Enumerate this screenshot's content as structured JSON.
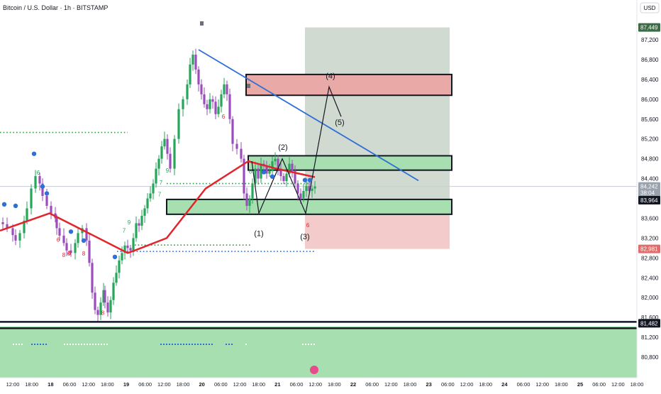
{
  "header": {
    "symbol_title": "Bitcoin / U.S. Dollar · 1h · BITSTAMP"
  },
  "price_axis": {
    "currency_button": "USD",
    "ticks": [
      "87,200",
      "86,800",
      "86,400",
      "86,000",
      "85,600",
      "85,200",
      "84,800",
      "84,400",
      "84,000",
      "83,600",
      "83,200",
      "82,800",
      "82,400",
      "82,000",
      "81,600",
      "81,200",
      "80,800"
    ]
  },
  "time_axis": {
    "labels": [
      "12:00",
      "18:00",
      "18",
      "06:00",
      "12:00",
      "18:00",
      "19",
      "06:00",
      "12:00",
      "18:00",
      "20",
      "06:00",
      "12:00",
      "18:00",
      "21",
      "06:00",
      "12:00",
      "18:00",
      "22",
      "06:00",
      "12:00",
      "18:00",
      "23",
      "06:00",
      "12:00",
      "18:00",
      "24",
      "06:00",
      "12:00",
      "18:00",
      "25",
      "06:00",
      "12:00",
      "18:00"
    ]
  },
  "badges": [
    {
      "label": "87,449",
      "value": 87449,
      "color": "#3d6b45"
    },
    {
      "label": "84,242",
      "sub": "38:04",
      "value": 84242,
      "color": "#9aa3ad"
    },
    {
      "label": "83,964",
      "value": 83964,
      "color": "#131722"
    },
    {
      "label": "82,981",
      "value": 82981,
      "color": "#e06c6c"
    },
    {
      "label": "81,482",
      "value": 81482,
      "color": "#131722"
    }
  ],
  "wave_labels": [
    "(1)",
    "(2)",
    "(3)",
    "(4)",
    "(5)"
  ],
  "markers": {
    "digit_labels": [
      "6",
      "6",
      "6",
      "6",
      "6",
      "6",
      "7",
      "7",
      "7",
      "8",
      "8",
      "8",
      "8",
      "9",
      "9"
    ]
  },
  "colors": {
    "bull": "#26a65b",
    "bear": "#9b4dbb",
    "ma": "#e3242b",
    "trend": "#2f6fd6",
    "dots_green": "#2e9e44",
    "dots_blue": "#2f6fd6",
    "zone_green": "#a8dfb0",
    "zone_red": "#e9a9a6",
    "target_grey": "#c9d3c9",
    "stop_red": "#f1c2c2"
  },
  "chart_data": {
    "type": "candlestick",
    "title": "Bitcoin / U.S. Dollar · 1h · BITSTAMP",
    "ylim": [
      80600,
      87700
    ],
    "y_ticks": [
      87200,
      86800,
      86400,
      86000,
      85600,
      85200,
      84800,
      84400,
      84000,
      83600,
      83200,
      82800,
      82400,
      82000,
      81600,
      81200,
      80800
    ],
    "close_path_x": [
      "0",
      "4",
      "10",
      "18",
      "22",
      "28",
      "34",
      "38",
      "44",
      "50",
      "56",
      "60",
      "66",
      "72",
      "78",
      "80",
      "84",
      "90",
      "94",
      "100",
      "106",
      "110",
      "116",
      "122",
      "126",
      "130",
      "134",
      "138",
      "142",
      "146",
      "148",
      "152",
      "156",
      "160",
      "164",
      "168",
      "172",
      "176",
      "180",
      "184",
      "188",
      "192",
      "196",
      "200",
      "204",
      "208",
      "212",
      "216",
      "220",
      "224",
      "228",
      "232",
      "236",
      "240",
      "246",
      "252",
      "258",
      "264",
      "268",
      "272",
      "276",
      "280",
      "284",
      "288",
      "292",
      "296",
      "300",
      "304",
      "308",
      "312",
      "316",
      "320",
      "324",
      "328",
      "334",
      "340",
      "344",
      "348",
      "352",
      "356",
      "360",
      "364",
      "368",
      "372",
      "376",
      "380",
      "384",
      "388",
      "392",
      "396",
      "400",
      "404",
      "408",
      "412",
      "416",
      "420",
      "424",
      "428",
      "432",
      "436",
      "440",
      "444"
    ],
    "close_path_y": [
      83520,
      83480,
      83400,
      83260,
      83150,
      83300,
      83550,
      83800,
      84200,
      84450,
      84300,
      84050,
      83850,
      83700,
      83600,
      83400,
      83250,
      83100,
      82950,
      82900,
      83100,
      83300,
      83400,
      83150,
      82700,
      82100,
      81750,
      81650,
      81900,
      82150,
      81900,
      81700,
      81950,
      82300,
      82500,
      82750,
      82900,
      83050,
      83000,
      82950,
      83200,
      83500,
      83450,
      83650,
      83800,
      84000,
      84100,
      84300,
      84600,
      84800,
      85050,
      85200,
      84900,
      84600,
      85200,
      85800,
      86000,
      86300,
      86700,
      86900,
      86600,
      86300,
      86100,
      85900,
      85800,
      86000,
      85950,
      85700,
      85850,
      86100,
      86300,
      86100,
      85600,
      85100,
      85000,
      84800,
      84100,
      83850,
      84000,
      84300,
      84600,
      84400,
      84700,
      84650,
      84500,
      84550,
      84750,
      84800,
      84600,
      84450,
      84350,
      84500,
      84700,
      84550,
      84300,
      84100,
      84000,
      84150,
      84250,
      84150,
      84200,
      84242
    ],
    "ma_line": [
      {
        "x": "12:00",
        "y": 83350
      },
      {
        "x": "18",
        "y": 83700
      },
      {
        "x": "12:00",
        "y": 82900
      },
      {
        "x": "19",
        "y": 82950
      },
      {
        "x": "12:00",
        "y": 83200
      },
      {
        "x": "20",
        "y": 84200
      },
      {
        "x": "12:00",
        "y": 84750
      },
      {
        "x": "21",
        "y": 84600
      },
      {
        "x": "12:00",
        "y": 84430
      }
    ],
    "levels": {
      "current": 84242,
      "support_top": 83964,
      "stop": 82981,
      "target": 87449,
      "line": 81482
    }
  }
}
